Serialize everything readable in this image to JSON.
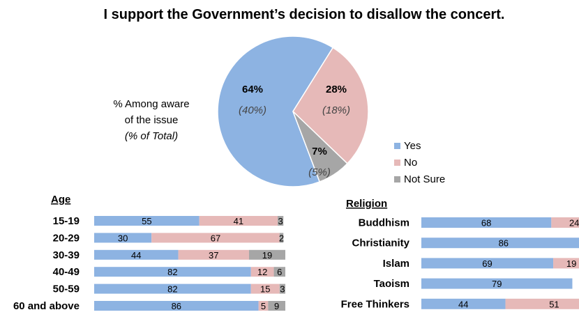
{
  "colors": {
    "yes": "#8DB3E2",
    "no": "#E6B9B8",
    "not_sure": "#A6A6A6",
    "text_note": "#1F3A1F"
  },
  "chart_data": [
    {
      "type": "pie",
      "title": "I support the Government’s decision to disallow the concert.",
      "note": [
        "% Among aware",
        "of the issue",
        "(% of Total)"
      ],
      "legend": [
        "Yes",
        "No",
        "Not Sure"
      ],
      "legend_position": "right",
      "slices": [
        {
          "label": "Yes",
          "value": 64,
          "display": "64%",
          "sub": "(40%)"
        },
        {
          "label": "No",
          "value": 28,
          "display": "28%",
          "sub": "(18%)"
        },
        {
          "label": "Not Sure",
          "value": 7,
          "display": "7%",
          "sub": "(5%)"
        }
      ]
    },
    {
      "type": "bar",
      "orientation": "horizontal",
      "stacked": true,
      "title": "Age",
      "categories": [
        "15-19",
        "20-29",
        "30-39",
        "40-49",
        "50-59",
        "60 and above"
      ],
      "series": [
        {
          "name": "Yes",
          "values": [
            55,
            30,
            44,
            82,
            82,
            86
          ]
        },
        {
          "name": "No",
          "values": [
            41,
            67,
            37,
            12,
            15,
            5
          ]
        },
        {
          "name": "Not Sure",
          "values": [
            3,
            2,
            19,
            6,
            3,
            9
          ]
        }
      ]
    },
    {
      "type": "bar",
      "orientation": "horizontal",
      "stacked": true,
      "title": "Religion",
      "categories": [
        "Buddhism",
        "Christianity",
        "Islam",
        "Taoism",
        "Free Thinkers"
      ],
      "series": [
        {
          "name": "Yes",
          "values": [
            68,
            86,
            69,
            79,
            44
          ]
        },
        {
          "name": "No",
          "values": [
            24,
            null,
            19,
            null,
            51
          ]
        },
        {
          "name": "Not Sure",
          "values": [
            null,
            null,
            null,
            null,
            null
          ]
        }
      ]
    }
  ]
}
